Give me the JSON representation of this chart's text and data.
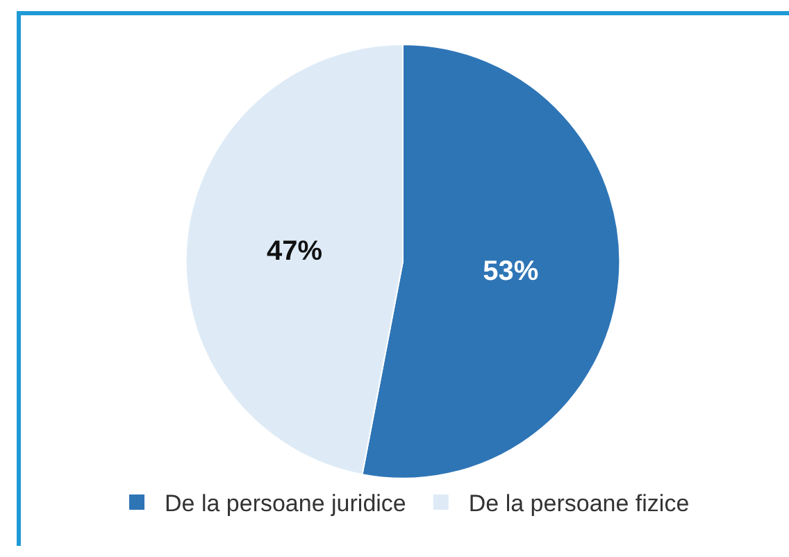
{
  "chart_data": {
    "type": "pie",
    "categories": [
      "De la persoane juridice",
      "De la persoane fizice"
    ],
    "values": [
      53,
      47
    ],
    "colors": [
      "#2e75b6",
      "#deebf7"
    ],
    "value_labels": [
      "53%",
      "47%"
    ],
    "legend": "bottom"
  }
}
